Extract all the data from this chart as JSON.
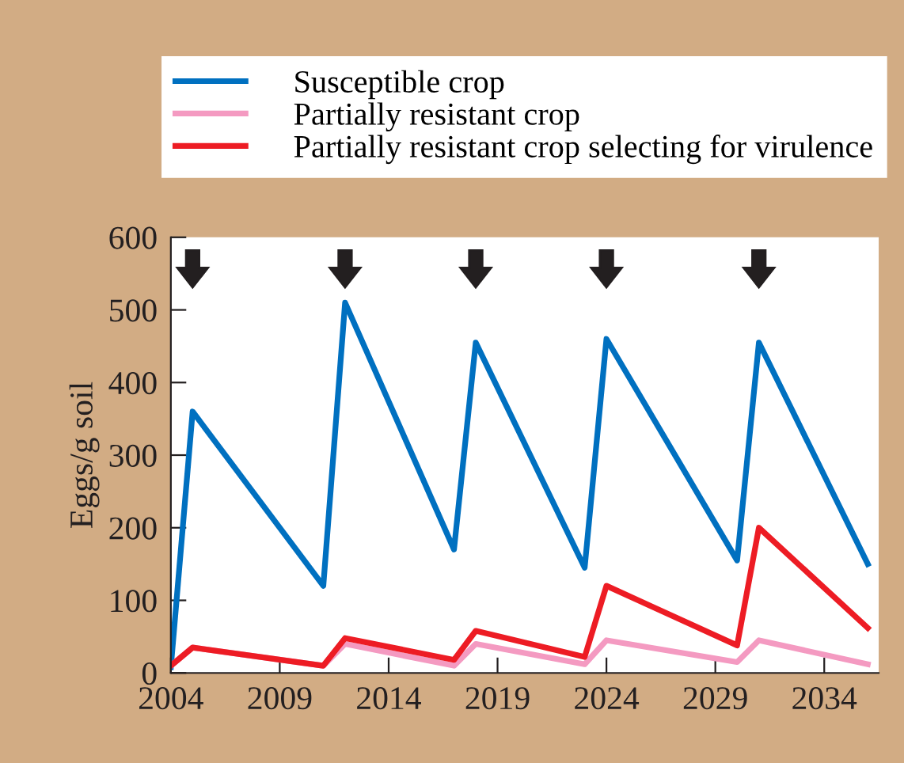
{
  "chart_data": {
    "type": "line",
    "ylabel": "Eggs/g soil",
    "xlim": [
      2004,
      2036.5
    ],
    "ylim": [
      0,
      600
    ],
    "xticks": [
      2004,
      2009,
      2014,
      2019,
      2024,
      2029,
      2034
    ],
    "yticks": [
      0,
      100,
      200,
      300,
      400,
      500,
      600
    ],
    "grid": false,
    "legend": "top",
    "marker": "none",
    "line_style": "solid",
    "series": [
      {
        "name": "Susceptible crop",
        "color": "#0070c0",
        "x": [
          2004,
          2005,
          2011,
          2012,
          2017,
          2018,
          2023,
          2024,
          2030,
          2031,
          2036
        ],
        "values": [
          8,
          360,
          120,
          510,
          170,
          455,
          145,
          460,
          155,
          455,
          150
        ]
      },
      {
        "name": "Partially resistant crop",
        "color": "#f49ac1",
        "x": [
          2004,
          2005,
          2011,
          2012,
          2017,
          2018,
          2023,
          2024,
          2030,
          2031,
          2036
        ],
        "values": [
          10,
          35,
          10,
          40,
          10,
          40,
          12,
          45,
          15,
          45,
          12
        ]
      },
      {
        "name": "Partially resistant crop selecting for virulence",
        "color": "#ed1c24",
        "x": [
          2004,
          2005,
          2011,
          2012,
          2017,
          2018,
          2023,
          2024,
          2030,
          2031,
          2036
        ],
        "values": [
          10,
          35,
          10,
          48,
          18,
          58,
          22,
          120,
          38,
          200,
          62
        ]
      }
    ]
  }
}
